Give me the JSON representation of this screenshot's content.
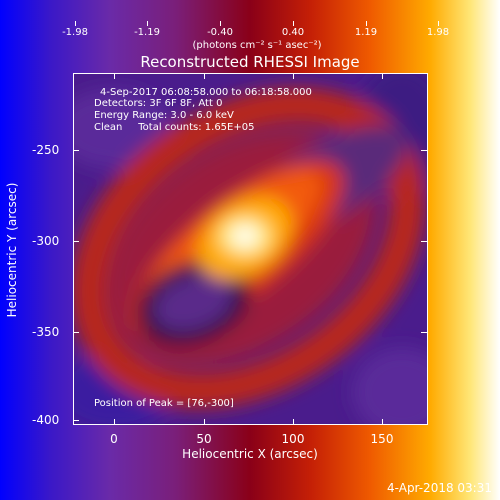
{
  "colorbar": {
    "tick_labels": [
      "-1.98",
      "-1.19",
      "-0.40",
      "0.40",
      "1.19",
      "1.98"
    ],
    "units": "(photons cm⁻² s⁻¹ asec⁻²)",
    "colors": [
      "#0000ff",
      "#6a2aa8",
      "#8a0018",
      "#ef5a00",
      "#ffe676",
      "#ffffff"
    ]
  },
  "plot": {
    "title": "Reconstructed RHESSI Image",
    "annotations": {
      "time_range": "4-Sep-2017 06:08:58.000 to 06:18:58.000",
      "detectors": "Detectors: 3F 6F 8F, Att 0",
      "energy_range": "Energy Range: 3.0 - 6.0 keV",
      "clean_counts": "Clean     Total counts: 1.65E+05",
      "peak_position": "Position of Peak = [76,-300]"
    },
    "x_axis": {
      "title": "Heliocentric X (arcsec)",
      "tick_labels": [
        "0",
        "50",
        "100",
        "150"
      ]
    },
    "y_axis": {
      "title": "Heliocentric Y (arcsec)",
      "tick_labels": [
        "-250",
        "-300",
        "-350",
        "-400"
      ]
    }
  },
  "timestamp": "4-Apr-2018 03:31"
}
